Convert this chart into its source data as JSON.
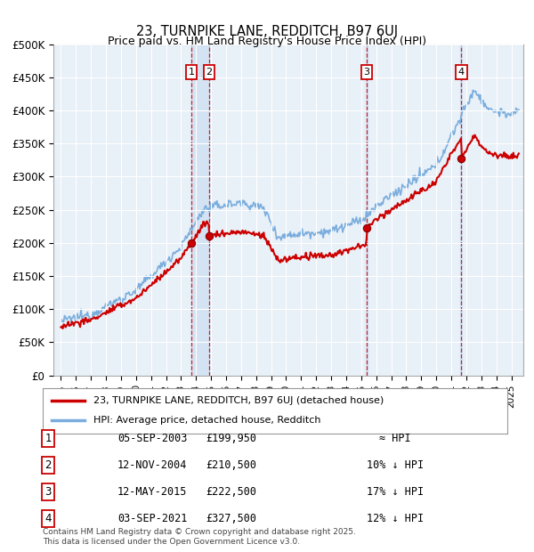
{
  "title": "23, TURNPIKE LANE, REDDITCH, B97 6UJ",
  "subtitle": "Price paid vs. HM Land Registry's House Price Index (HPI)",
  "hpi_color": "#7aaddd",
  "price_color": "#cc0000",
  "background_color": "#dce9f5",
  "plot_bg_color": "#e8f0f8",
  "grid_color": "#ffffff",
  "transactions": [
    {
      "num": 1,
      "date": "05-SEP-2003",
      "date_x": 2003.68,
      "price": 199950,
      "label": "£199,950",
      "vs_hpi": "≈ HPI"
    },
    {
      "num": 2,
      "date": "12-NOV-2004",
      "date_x": 2004.87,
      "price": 210500,
      "label": "£210,500",
      "vs_hpi": "10% ↓ HPI"
    },
    {
      "num": 3,
      "date": "12-MAY-2015",
      "date_x": 2015.36,
      "price": 222500,
      "label": "£222,500",
      "vs_hpi": "17% ↓ HPI"
    },
    {
      "num": 4,
      "date": "03-SEP-2021",
      "date_x": 2021.67,
      "price": 327500,
      "label": "£327,500",
      "vs_hpi": "12% ↓ HPI"
    }
  ],
  "legend_line1": "23, TURNPIKE LANE, REDDITCH, B97 6UJ (detached house)",
  "legend_line2": "HPI: Average price, detached house, Redditch",
  "footnote": "Contains HM Land Registry data © Crown copyright and database right 2025.\nThis data is licensed under the Open Government Licence v3.0.",
  "xlim_start": 1994.5,
  "xlim_end": 2025.8,
  "ylim": [
    0,
    500000
  ],
  "yticks": [
    0,
    50000,
    100000,
    150000,
    200000,
    250000,
    300000,
    350000,
    400000,
    450000,
    500000
  ],
  "ytick_labels": [
    "£0",
    "£50K",
    "£100K",
    "£150K",
    "£200K",
    "£250K",
    "£300K",
    "£350K",
    "£400K",
    "£450K",
    "£500K"
  ]
}
